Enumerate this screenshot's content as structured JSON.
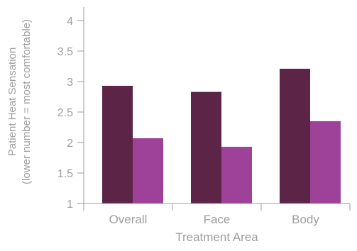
{
  "chart_data": {
    "type": "bar",
    "title": "",
    "xlabel": "Treatment Area",
    "ylabel_line1": "Patient Heat Sensation",
    "ylabel_line2": "(lower number = most comfortable)",
    "categories": [
      "Overall",
      "Face",
      "Body"
    ],
    "ylim": [
      1,
      4
    ],
    "yticks": [
      "1",
      "1.5",
      "2",
      "2.5",
      "3",
      "3.5",
      "4"
    ],
    "grid": false,
    "legend": "none",
    "series": [
      {
        "values": [
          2.93,
          2.83,
          3.21
        ],
        "color": "#5c2447"
      },
      {
        "values": [
          2.07,
          1.93,
          2.35
        ],
        "color": "#9e4199"
      }
    ],
    "axis_color": "#9e9e9e"
  }
}
